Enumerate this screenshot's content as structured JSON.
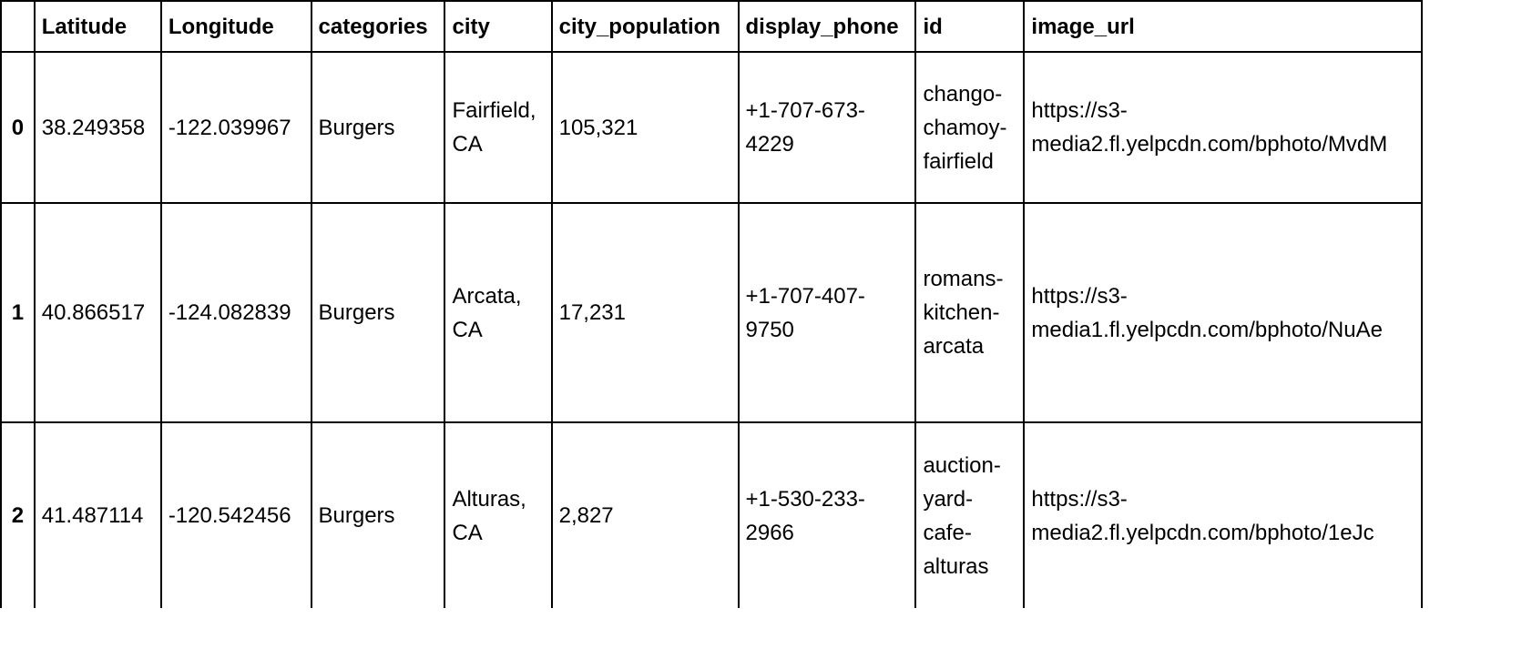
{
  "table": {
    "columns": [
      "",
      "Latitude",
      "Longitude",
      "categories",
      "city",
      "city_population",
      "display_phone",
      "id",
      "image_url"
    ],
    "rows": [
      {
        "index": "0",
        "latitude": "38.249358",
        "longitude": "-122.039967",
        "categories": "Burgers",
        "city": "Fairfield, CA",
        "city_population": "105,321",
        "display_phone": "+1-707-673-4229",
        "id": "chango-chamoy-fairfield",
        "image_url_line1": "https://s3-",
        "image_url_line2": "media2.fl.yelpcdn.com/bphoto/MvdM"
      },
      {
        "index": "1",
        "latitude": "40.866517",
        "longitude": "-124.082839",
        "categories": "Burgers",
        "city": "Arcata, CA",
        "city_population": "17,231",
        "display_phone": "+1-707-407-9750",
        "id": "romans-kitchen-arcata",
        "image_url_line1": "https://s3-",
        "image_url_line2": "media1.fl.yelpcdn.com/bphoto/NuAe"
      },
      {
        "index": "2",
        "latitude": "41.487114",
        "longitude": "-120.542456",
        "categories": "Burgers",
        "city": "Alturas, CA",
        "city_population": "2,827",
        "display_phone": "+1-530-233-2966",
        "id": "auction-yard-cafe-alturas",
        "image_url_line1": "https://s3-",
        "image_url_line2": "media2.fl.yelpcdn.com/bphoto/1eJc"
      }
    ]
  }
}
